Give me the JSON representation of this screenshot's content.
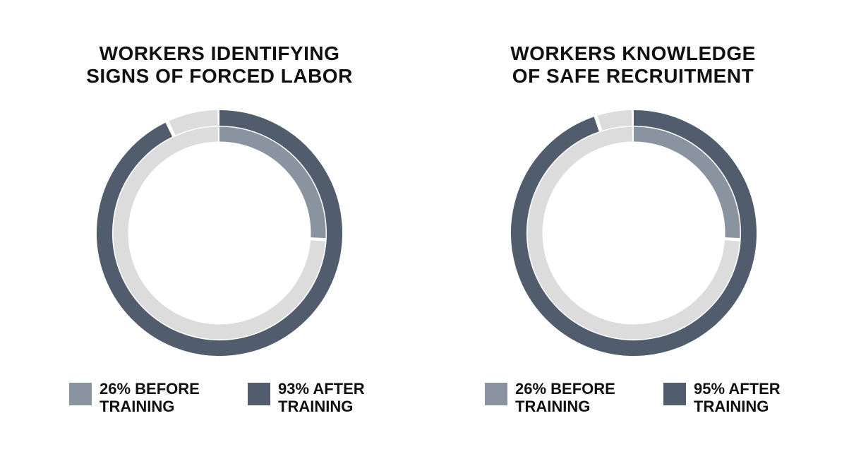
{
  "colors": {
    "before": "#8a93a0",
    "after": "#515d6d",
    "track": "#dcdcdc",
    "background": "#ffffff"
  },
  "charts": [
    {
      "title_line1": "WORKERS IDENTIFYING",
      "title_line2": "SIGNS OF FORCED LABOR",
      "legend": [
        {
          "line1": "26% BEFORE",
          "line2": "TRAINING"
        },
        {
          "line1": "93% AFTER",
          "line2": "TRAINING"
        }
      ]
    },
    {
      "title_line1": "WORKERS KNOWLEDGE",
      "title_line2": "OF SAFE RECRUITMENT",
      "legend": [
        {
          "line1": "26% BEFORE",
          "line2": "TRAINING"
        },
        {
          "line1": "95% AFTER",
          "line2": "TRAINING"
        }
      ]
    }
  ],
  "chart_data": [
    {
      "type": "pie",
      "title": "WORKERS IDENTIFYING SIGNS OF FORCED LABOR",
      "series": [
        {
          "name": "BEFORE TRAINING",
          "value": 26,
          "unit": "%"
        },
        {
          "name": "AFTER TRAINING",
          "value": 93,
          "unit": "%"
        }
      ],
      "max": 100
    },
    {
      "type": "pie",
      "title": "WORKERS KNOWLEDGE OF SAFE RECRUITMENT",
      "series": [
        {
          "name": "BEFORE TRAINING",
          "value": 26,
          "unit": "%"
        },
        {
          "name": "AFTER TRAINING",
          "value": 95,
          "unit": "%"
        }
      ],
      "max": 100
    }
  ]
}
